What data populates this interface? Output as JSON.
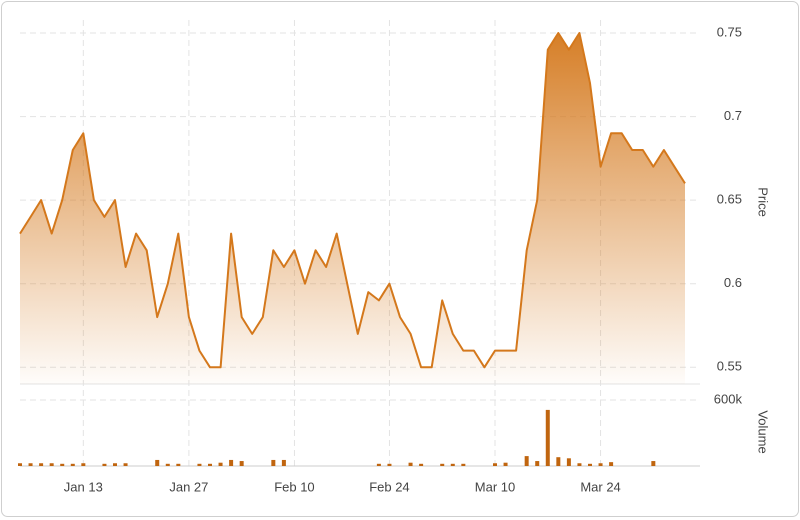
{
  "chart_data": {
    "type": "stock",
    "price_axis_title": "Price",
    "volume_axis_title": "Volume",
    "categories": [
      "",
      "",
      "",
      "",
      "",
      "",
      "Jan 13",
      "",
      "",
      "",
      "",
      "",
      "",
      "",
      "",
      "",
      "Jan 27",
      "",
      "",
      "",
      "",
      "",
      "",
      "",
      "",
      "",
      "Feb 10",
      "",
      "",
      "",
      "",
      "",
      "",
      "",
      "",
      "Feb 24",
      "",
      "",
      "",
      "",
      "",
      "",
      "",
      "",
      "",
      "Mar 10",
      "",
      "",
      "",
      "",
      "",
      "",
      "",
      "",
      "",
      "Mar 24",
      "",
      "",
      "",
      "",
      "",
      "",
      "",
      ""
    ],
    "series": [
      {
        "name": "Price",
        "color": "#d4781c",
        "values": [
          0.63,
          0.64,
          0.65,
          0.63,
          0.65,
          0.68,
          0.69,
          0.65,
          0.64,
          0.65,
          0.61,
          0.63,
          0.62,
          0.58,
          0.6,
          0.63,
          0.58,
          0.56,
          0.55,
          0.55,
          0.63,
          0.58,
          0.57,
          0.58,
          0.62,
          0.61,
          0.62,
          0.6,
          0.62,
          0.61,
          0.63,
          0.6,
          0.57,
          0.595,
          0.59,
          0.6,
          0.58,
          0.57,
          0.55,
          0.55,
          0.59,
          0.57,
          0.56,
          0.56,
          0.55,
          0.56,
          0.56,
          0.56,
          0.62,
          0.65,
          0.74,
          0.75,
          0.74,
          0.75,
          0.72,
          0.67,
          0.69,
          0.69,
          0.68,
          0.68,
          0.67,
          0.68,
          0.67,
          0.66
        ]
      },
      {
        "name": "Volume",
        "color": "#c0650f",
        "axis": "y2",
        "values": [
          25000,
          25000,
          25000,
          25000,
          20000,
          20000,
          25000,
          0,
          20000,
          25000,
          25000,
          0,
          0,
          55000,
          20000,
          20000,
          0,
          20000,
          20000,
          30000,
          55000,
          45000,
          0,
          0,
          55000,
          55000,
          0,
          0,
          0,
          0,
          0,
          0,
          0,
          0,
          20000,
          20000,
          0,
          30000,
          20000,
          0,
          20000,
          20000,
          20000,
          0,
          0,
          25000,
          30000,
          0,
          90000,
          45000,
          510000,
          80000,
          70000,
          25000,
          20000,
          25000,
          35000,
          0,
          0,
          0,
          45000,
          0,
          0,
          0
        ]
      }
    ],
    "ylim": [
      0.54,
      0.75
    ],
    "yticks": [
      0.55,
      0.6,
      0.65,
      0.7,
      0.75
    ],
    "y2lim": [
      0,
      600000
    ],
    "y2ticks": [
      {
        "value": 600000,
        "label": "600k"
      }
    ],
    "grid": true
  }
}
